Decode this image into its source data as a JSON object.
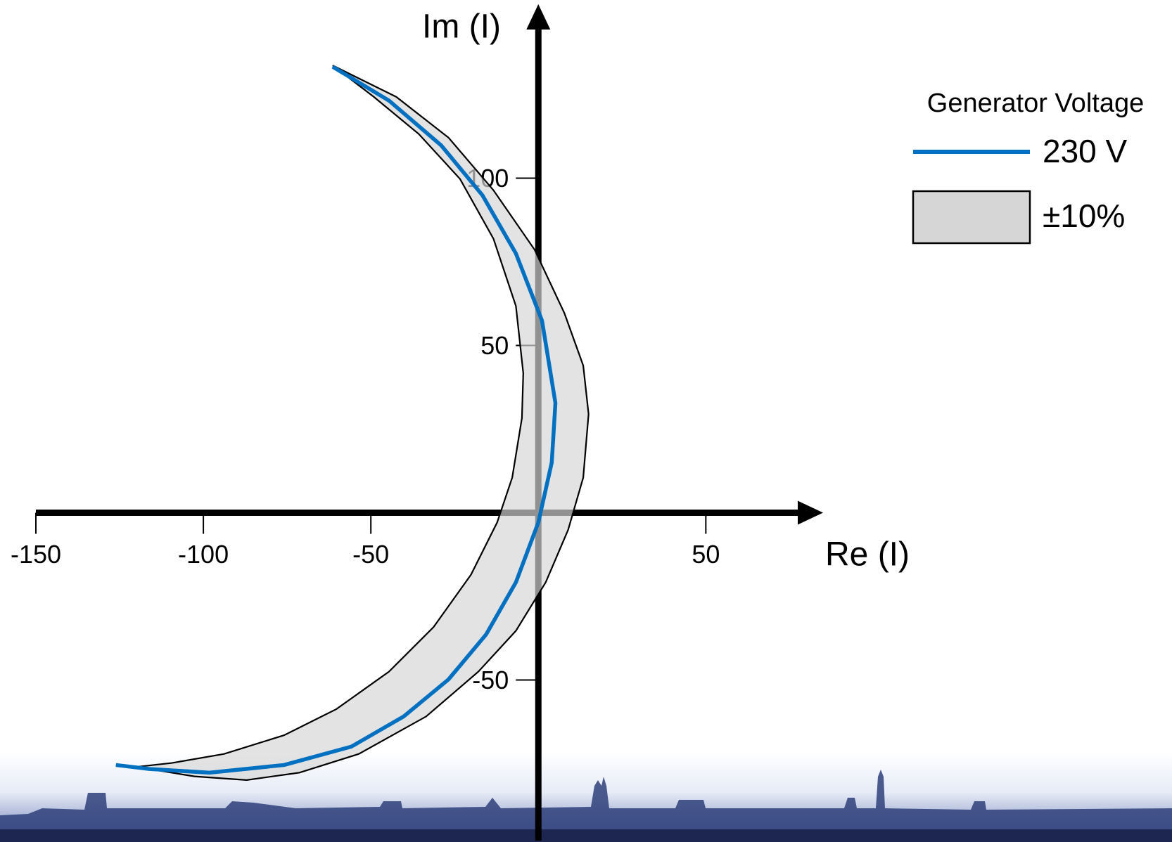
{
  "chart_data": {
    "type": "line",
    "x_label": "Re (I)",
    "y_label": "Im (I)",
    "legend_title": "Generator Voltage",
    "legend_position": "upper right",
    "xlim": [
      -150,
      85
    ],
    "ylim": [
      -98,
      152
    ],
    "xticks": [
      -150,
      -100,
      -50,
      50
    ],
    "yticks": [
      -50,
      50,
      100
    ],
    "series": [
      {
        "name": "230 V",
        "color": "#0070c0",
        "x": [
          -61.4,
          -44.6,
          -29.0,
          -16.7,
          -6.7,
          1.1,
          5.1,
          4.0,
          0,
          -6.7,
          -15.6,
          -26.8,
          -40.2,
          -55.8,
          -75.9,
          -98.2,
          -116.1,
          -126.1
        ],
        "y": [
          133.3,
          123.2,
          109.8,
          94.9,
          77.5,
          57.4,
          32.8,
          15.0,
          -2.9,
          -20.8,
          -36.4,
          -49.8,
          -60.9,
          -69.9,
          -75.4,
          -77.7,
          -76.6,
          -75.4
        ]
      },
      {
        "name": "±10%",
        "color": "#d6d6d6",
        "outer_x": [
          -61.4,
          -42.4,
          -26.8,
          -13.4,
          -1.1,
          7.8,
          13.4,
          15.0,
          13.4,
          8.9,
          2.2,
          -6.7,
          -17.9,
          -33.5,
          -53.6,
          -71.4,
          -87.1,
          -102.7,
          -116.1,
          -126.1
        ],
        "outer_y": [
          133.7,
          124.3,
          112.1,
          96.4,
          78.6,
          59.6,
          44.0,
          29.5,
          10.5,
          -5.1,
          -20.8,
          -35.3,
          -47.5,
          -60.9,
          -72.1,
          -77.7,
          -79.9,
          -78.8,
          -76.6,
          -75.4
        ],
        "inner_x": [
          -49.1,
          -35.7,
          -23.4,
          -13.4,
          -6.7,
          -4.5,
          -4.9,
          -7.8,
          -12.3,
          -20.1,
          -31.3,
          -44.6,
          -60.3,
          -75.9,
          -93.8,
          -109.4,
          -119.4
        ],
        "inner_y": [
          124.3,
          113.2,
          99.8,
          81.9,
          61.8,
          41.7,
          28.3,
          10.5,
          -2.9,
          -18.5,
          -34.2,
          -47.5,
          -58.7,
          -66.5,
          -72.1,
          -74.8,
          -75.9
        ]
      }
    ]
  }
}
